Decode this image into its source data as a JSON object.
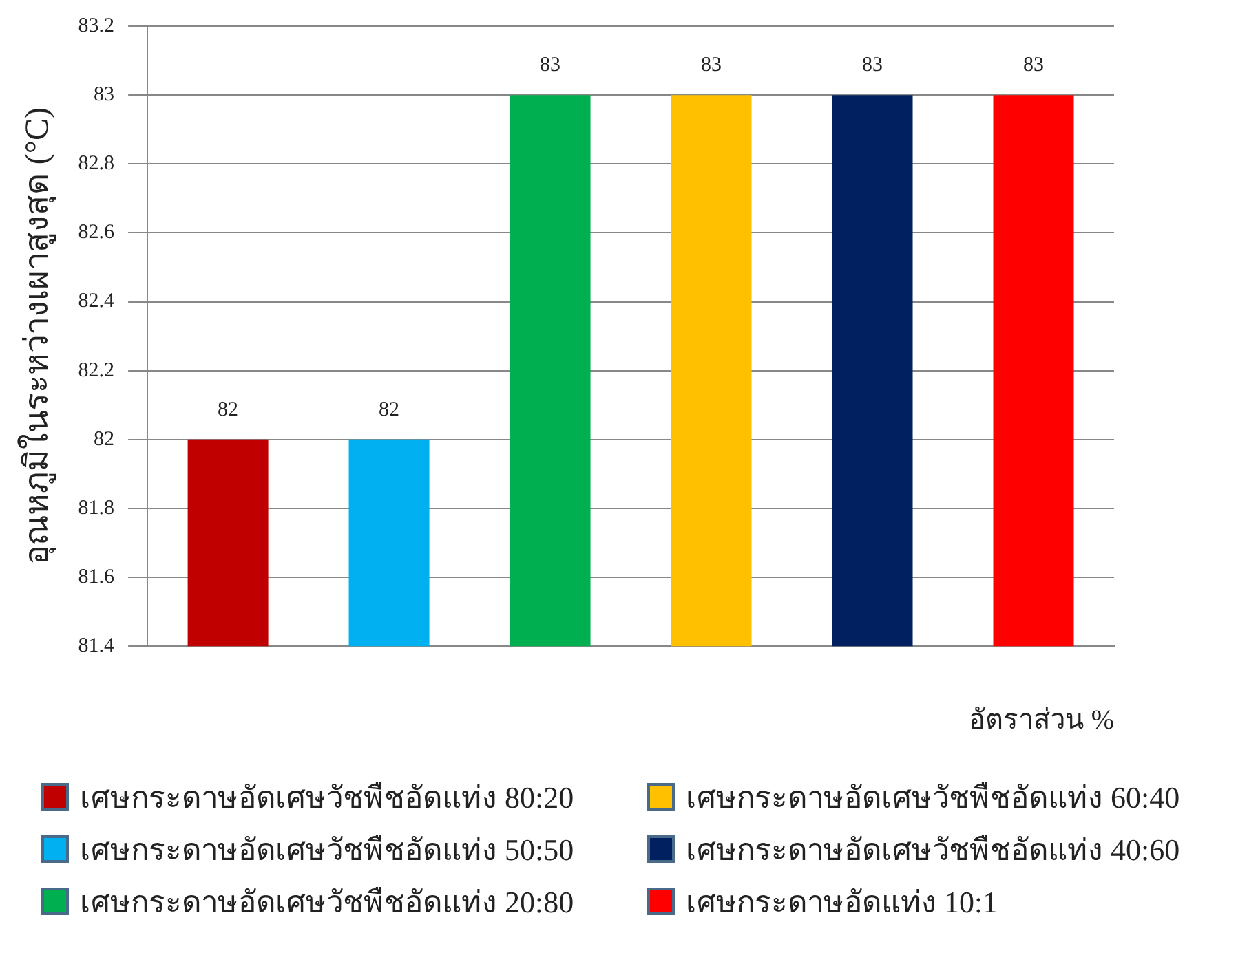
{
  "chart_data": {
    "type": "bar",
    "xlabel": "อัตราส่วน %",
    "ylabel": "อุณหภูมิในระหว่างเผาสูงสุด (°C)",
    "categories": [
      null,
      null,
      null,
      null,
      null,
      null
    ],
    "series": [
      {
        "name": "เศษกระดาษอัดเศษวัชพืชอัดแท่ง 80:20",
        "color": "#c00000",
        "values": [
          82,
          null,
          null,
          null,
          null,
          null
        ]
      },
      {
        "name": "เศษกระดาษอัดเศษวัชพืชอัดแท่ง 50:50",
        "color": "#00b0f0",
        "values": [
          null,
          82,
          null,
          null,
          null,
          null
        ]
      },
      {
        "name": "เศษกระดาษอัดเศษวัชพืชอัดแท่ง 20:80",
        "color": "#00b050",
        "values": [
          null,
          null,
          83,
          null,
          null,
          null
        ]
      },
      {
        "name": "เศษกระดาษอัดเศษวัชพืชอัดแท่ง 60:40",
        "color": "#ffc000",
        "values": [
          null,
          null,
          null,
          83,
          null,
          null
        ]
      },
      {
        "name": "เศษกระดาษอัดเศษวัชพืชอัดแท่ง 40:60",
        "color": "#002060",
        "values": [
          null,
          null,
          null,
          null,
          83,
          null
        ]
      },
      {
        "name": "เศษกระดาษอัดแท่ง 10:1",
        "color": "#ff0000",
        "values": [
          null,
          null,
          null,
          null,
          null,
          83
        ]
      }
    ],
    "ylim": [
      81.4,
      83.2
    ],
    "yticks": [
      81.4,
      81.6,
      81.8,
      82,
      82.2,
      82.4,
      82.6,
      82.8,
      83,
      83.2
    ],
    "grid": "y",
    "data_labels": true,
    "legend": "bottom"
  }
}
